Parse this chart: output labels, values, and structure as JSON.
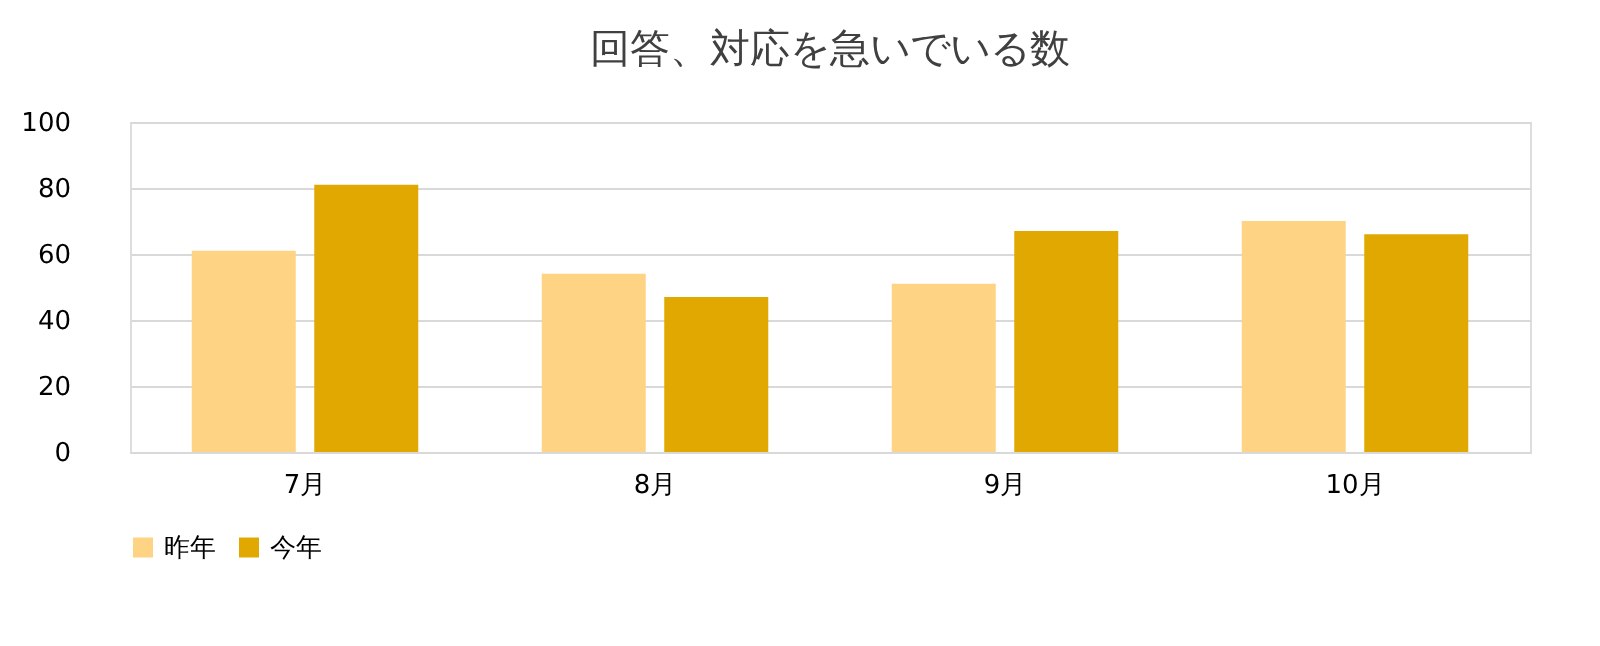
{
  "chart_data": {
    "type": "bar",
    "title": "回答、対応を急いでいる数",
    "categories": [
      "7月",
      "8月",
      "9月",
      "10月"
    ],
    "series": [
      {
        "name": "昨年",
        "color": "#ffd384",
        "values": [
          61,
          54,
          51,
          70
        ]
      },
      {
        "name": "今年",
        "color": "#e0a800",
        "values": [
          81,
          47,
          67,
          66
        ]
      }
    ],
    "ylim": [
      0,
      100
    ],
    "yticks": [
      0,
      20,
      40,
      60,
      80,
      100
    ],
    "grid": "y",
    "legend": "bottom"
  }
}
